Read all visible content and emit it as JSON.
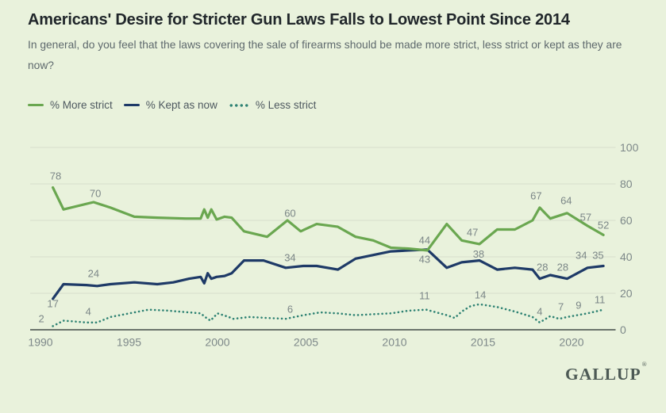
{
  "header": {
    "title": "Americans' Desire for Stricter Gun Laws Falls to Lowest Point Since 2014",
    "subtitle": "In general, do you feel that the laws covering the sale of firearms should be made more strict, less strict or kept as they are now?"
  },
  "legend": {
    "items": [
      {
        "label": "% More strict",
        "color": "#6aa750",
        "style": "solid"
      },
      {
        "label": "% Kept as now",
        "color": "#1e3a67",
        "style": "solid"
      },
      {
        "label": "% Less strict",
        "color": "#2e8273",
        "style": "dotted"
      }
    ]
  },
  "branding": {
    "logo": "GALLUP",
    "trademark": "®"
  },
  "colors": {
    "background": "#e9f2dc",
    "grid": "#d8ddcd",
    "axis": "#59635c",
    "tick_text": "#7d8889",
    "label_text": "#7b8687"
  },
  "chart_data": {
    "type": "line",
    "title": "Americans' Desire for Stricter Gun Laws Falls to Lowest Point Since 2014",
    "question": "In general, do you feel that the laws covering the sale of firearms should be made more strict, less strict or kept as they are now?",
    "unit": "%",
    "x_axis": {
      "ticks": [
        1990,
        1995,
        2000,
        2005,
        2010,
        2015,
        2020
      ],
      "range": [
        1989.4,
        2022.5
      ]
    },
    "y_axis": {
      "ticks": [
        0,
        20,
        40,
        60,
        80,
        100
      ],
      "range": [
        0,
        100
      ],
      "gridlines": true,
      "side": "right"
    },
    "legend_position": "top-left",
    "series": [
      {
        "name": "% Less strict",
        "color": "#2e8273",
        "line_style": "dotted",
        "points": [
          [
            1990.7,
            2
          ],
          [
            1991.3,
            5
          ],
          [
            1992.6,
            4
          ],
          [
            1993.2,
            4
          ],
          [
            1993.95,
            7
          ],
          [
            1995.3,
            9.5
          ],
          [
            1996.1,
            11
          ],
          [
            1997.2,
            10.5
          ],
          [
            1998.4,
            9.5
          ],
          [
            1999.05,
            9
          ],
          [
            1999.3,
            7
          ],
          [
            1999.6,
            5
          ],
          [
            2000.0,
            9
          ],
          [
            2000.5,
            7.5
          ],
          [
            2000.9,
            6
          ],
          [
            2001.8,
            7
          ],
          [
            2002.8,
            6.5
          ],
          [
            2003.85,
            6
          ],
          [
            2004.85,
            8
          ],
          [
            2005.8,
            9.5
          ],
          [
            2006.8,
            9
          ],
          [
            2007.8,
            8
          ],
          [
            2008.8,
            8.5
          ],
          [
            2009.8,
            9
          ],
          [
            2010.8,
            10.5
          ],
          [
            2011.8,
            11
          ],
          [
            2012.95,
            8
          ],
          [
            2013.4,
            6.5
          ],
          [
            2013.8,
            10
          ],
          [
            2014.3,
            13
          ],
          [
            2014.8,
            14
          ],
          [
            2015.8,
            12.5
          ],
          [
            2016.8,
            10
          ],
          [
            2017.8,
            7
          ],
          [
            2018.2,
            4
          ],
          [
            2018.8,
            7.5
          ],
          [
            2019.3,
            6
          ],
          [
            2019.75,
            7
          ],
          [
            2020.9,
            9
          ],
          [
            2021.8,
            11
          ]
        ],
        "labels": [
          {
            "t": "2",
            "year": 1990.05,
            "v": 4.1
          },
          {
            "t": "4",
            "year": 1992.7,
            "v": 8.0
          },
          {
            "t": "6",
            "year": 2004.1,
            "v": 9.3
          },
          {
            "t": "11",
            "year": 2011.7,
            "v": 16.7
          },
          {
            "t": "14",
            "year": 2014.85,
            "v": 17.2
          },
          {
            "t": "4",
            "year": 2018.2,
            "v": 8.0
          },
          {
            "t": "7",
            "year": 2019.4,
            "v": 10.7
          },
          {
            "t": "9",
            "year": 2020.4,
            "v": 11.5
          },
          {
            "t": "11",
            "year": 2021.6,
            "v": 14.6
          }
        ]
      },
      {
        "name": "% Kept as now",
        "color": "#1e3a67",
        "line_style": "solid",
        "points": [
          [
            1990.7,
            17
          ],
          [
            1991.3,
            25
          ],
          [
            1992.6,
            24.5
          ],
          [
            1993.2,
            24
          ],
          [
            1993.95,
            25
          ],
          [
            1995.3,
            26
          ],
          [
            1996.6,
            25
          ],
          [
            1997.5,
            26
          ],
          [
            1998.4,
            28
          ],
          [
            1999.05,
            29
          ],
          [
            1999.25,
            25.5
          ],
          [
            1999.45,
            31
          ],
          [
            1999.65,
            28
          ],
          [
            1999.95,
            29
          ],
          [
            2000.4,
            29.5
          ],
          [
            2000.8,
            31
          ],
          [
            2001.5,
            38
          ],
          [
            2002.6,
            38
          ],
          [
            2003.85,
            34
          ],
          [
            2004.85,
            35
          ],
          [
            2005.6,
            35
          ],
          [
            2006.8,
            33
          ],
          [
            2007.8,
            39
          ],
          [
            2008.8,
            41
          ],
          [
            2009.8,
            43
          ],
          [
            2010.8,
            43.5
          ],
          [
            2011.85,
            44
          ],
          [
            2012.95,
            34
          ],
          [
            2013.8,
            37
          ],
          [
            2014.8,
            38
          ],
          [
            2015.8,
            33
          ],
          [
            2016.8,
            34
          ],
          [
            2017.8,
            33
          ],
          [
            2018.2,
            28
          ],
          [
            2018.8,
            30
          ],
          [
            2019.75,
            28
          ],
          [
            2020.9,
            34
          ],
          [
            2021.8,
            35
          ]
        ],
        "labels": [
          {
            "t": "17",
            "year": 1990.7,
            "v": 12.4
          },
          {
            "t": "24",
            "year": 1993.0,
            "v": 28.9
          },
          {
            "t": "34",
            "year": 2004.1,
            "v": 37.6
          },
          {
            "t": "43",
            "year": 2011.7,
            "v": 36.7
          },
          {
            "t": "38",
            "year": 2014.75,
            "v": 39.5
          },
          {
            "t": "28",
            "year": 2018.35,
            "v": 32.4
          },
          {
            "t": "28",
            "year": 2019.5,
            "v": 32.4
          },
          {
            "t": "34",
            "year": 2020.55,
            "v": 38.9
          },
          {
            "t": "35",
            "year": 2021.5,
            "v": 38.9
          }
        ]
      },
      {
        "name": "% More strict",
        "color": "#6aa750",
        "line_style": "solid",
        "points": [
          [
            1990.7,
            78
          ],
          [
            1991.3,
            66
          ],
          [
            1993.0,
            70
          ],
          [
            1993.95,
            67
          ],
          [
            1995.3,
            62
          ],
          [
            1996.6,
            61.5
          ],
          [
            1998.2,
            61
          ],
          [
            1999.05,
            61
          ],
          [
            1999.25,
            66
          ],
          [
            1999.45,
            61.5
          ],
          [
            1999.65,
            66
          ],
          [
            1999.95,
            60.5
          ],
          [
            2000.4,
            62
          ],
          [
            2000.8,
            61.5
          ],
          [
            2001.5,
            54
          ],
          [
            2002.8,
            51
          ],
          [
            2003.95,
            60
          ],
          [
            2004.7,
            54
          ],
          [
            2005.6,
            58
          ],
          [
            2006.8,
            56.5
          ],
          [
            2007.8,
            51
          ],
          [
            2008.8,
            49
          ],
          [
            2009.8,
            45
          ],
          [
            2010.8,
            44.5
          ],
          [
            2011.85,
            43.5
          ],
          [
            2012.95,
            58
          ],
          [
            2013.8,
            49
          ],
          [
            2014.8,
            47
          ],
          [
            2015.8,
            55
          ],
          [
            2016.8,
            55
          ],
          [
            2017.8,
            60
          ],
          [
            2018.2,
            67
          ],
          [
            2018.8,
            61
          ],
          [
            2019.75,
            64
          ],
          [
            2020.9,
            57
          ],
          [
            2021.8,
            52
          ]
        ],
        "labels": [
          {
            "t": "78",
            "year": 1990.85,
            "v": 82.4
          },
          {
            "t": "70",
            "year": 1993.1,
            "v": 72.8
          },
          {
            "t": "60",
            "year": 2004.1,
            "v": 62.0
          },
          {
            "t": "44",
            "year": 2011.7,
            "v": 47.2
          },
          {
            "t": "47",
            "year": 2014.4,
            "v": 51.5
          },
          {
            "t": "67",
            "year": 2018.0,
            "v": 71.5
          },
          {
            "t": "64",
            "year": 2019.7,
            "v": 68.9
          },
          {
            "t": "57",
            "year": 2020.8,
            "v": 59.8
          },
          {
            "t": "52",
            "year": 2021.8,
            "v": 55.4
          }
        ]
      }
    ]
  }
}
